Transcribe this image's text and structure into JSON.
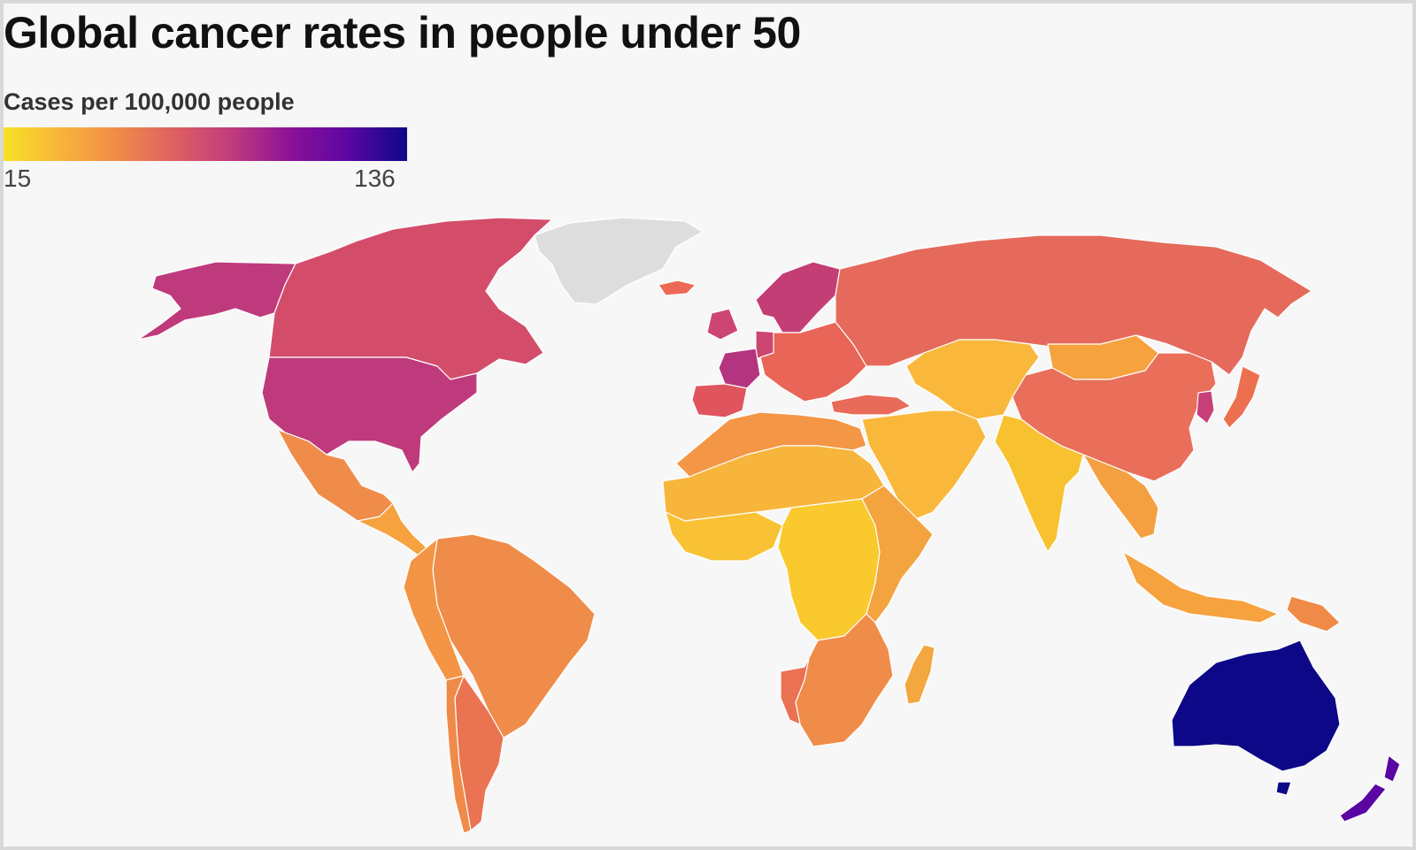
{
  "title": "Global cancer rates in people under 50",
  "legend": {
    "label": "Cases per 100,000 people",
    "min": "15",
    "max": "136",
    "gradient": [
      "#f7e225",
      "#f8b43b",
      "#f08a48",
      "#dd5e63",
      "#bf3a7c",
      "#8b1197",
      "#5a06a3",
      "#0d0887"
    ]
  },
  "colors": {
    "no_data": "#dddddd",
    "water": "#f7f7f7"
  },
  "regions": [
    {
      "name": "Alaska",
      "color": "#bf3a7c"
    },
    {
      "name": "Canada",
      "color": "#d34d6a"
    },
    {
      "name": "Greenland",
      "color": "#dddddd"
    },
    {
      "name": "Iceland",
      "color": "#ec6a55"
    },
    {
      "name": "United States",
      "color": "#bf3a7c"
    },
    {
      "name": "Mexico",
      "color": "#f08c4a"
    },
    {
      "name": "Central America",
      "color": "#f5a23f"
    },
    {
      "name": "Brazil",
      "color": "#f08c4a"
    },
    {
      "name": "Andes",
      "color": "#f39545"
    },
    {
      "name": "Argentina",
      "color": "#ea7352"
    },
    {
      "name": "Chile",
      "color": "#f08a48"
    },
    {
      "name": "Scandinavia",
      "color": "#c43e76"
    },
    {
      "name": "Western Europe",
      "color": "#cd4671"
    },
    {
      "name": "France",
      "color": "#b5347f"
    },
    {
      "name": "Iberia",
      "color": "#e0545e"
    },
    {
      "name": "Eastern Europe",
      "color": "#e86557"
    },
    {
      "name": "Russia",
      "color": "#e66a5c"
    },
    {
      "name": "Turkey",
      "color": "#e86a58"
    },
    {
      "name": "Central Asia",
      "color": "#f9b83b"
    },
    {
      "name": "Mongolia",
      "color": "#f5a23f"
    },
    {
      "name": "China",
      "color": "#e96f5a"
    },
    {
      "name": "Korea",
      "color": "#c8407a"
    },
    {
      "name": "Japan",
      "color": "#ec7050"
    },
    {
      "name": "Middle East",
      "color": "#f9b83b"
    },
    {
      "name": "India",
      "color": "#f8c12f"
    },
    {
      "name": "Southeast Asia",
      "color": "#f5a040"
    },
    {
      "name": "Indonesia",
      "color": "#f6a23f"
    },
    {
      "name": "Papua New Guinea",
      "color": "#f08a48"
    },
    {
      "name": "North Africa",
      "color": "#f39646"
    },
    {
      "name": "Sahel",
      "color": "#f7b53b"
    },
    {
      "name": "Western Africa",
      "color": "#f8c234"
    },
    {
      "name": "Central Africa",
      "color": "#f9c92e"
    },
    {
      "name": "East Africa",
      "color": "#f4a43f"
    },
    {
      "name": "Southern Africa",
      "color": "#f08c4a"
    },
    {
      "name": "Namibia",
      "color": "#ea7253"
    },
    {
      "name": "Madagascar",
      "color": "#f4a640"
    },
    {
      "name": "Australia",
      "color": "#0d0887"
    },
    {
      "name": "New Zealand",
      "color": "#5a06a3"
    }
  ]
}
